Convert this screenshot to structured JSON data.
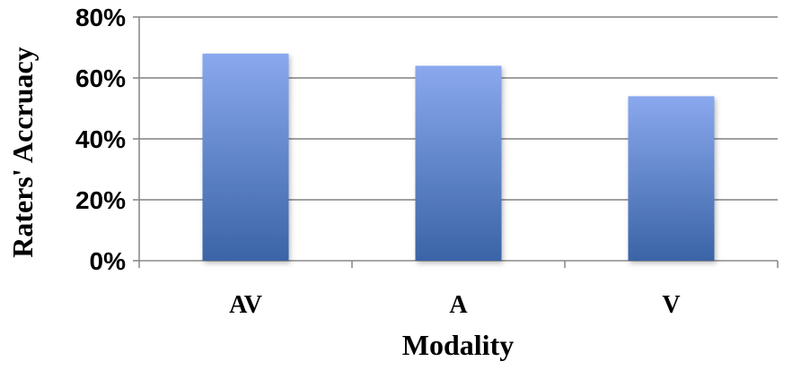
{
  "chart_data": {
    "type": "bar",
    "categories": [
      "AV",
      "A",
      "V"
    ],
    "values": [
      68,
      64,
      54
    ],
    "ylim": [
      0,
      80
    ],
    "yticks": [
      0,
      20,
      40,
      60,
      80
    ],
    "ytick_labels": [
      "0%",
      "20%",
      "40%",
      "60%",
      "80%"
    ],
    "xlabel": "Modality",
    "ylabel": "Raters' Accruacy",
    "grid": true,
    "colors": {
      "bar_top": "#8aa8ee",
      "bar_bottom": "#3a64a6",
      "grid": "#808080",
      "axis": "#8a8a8a"
    }
  }
}
